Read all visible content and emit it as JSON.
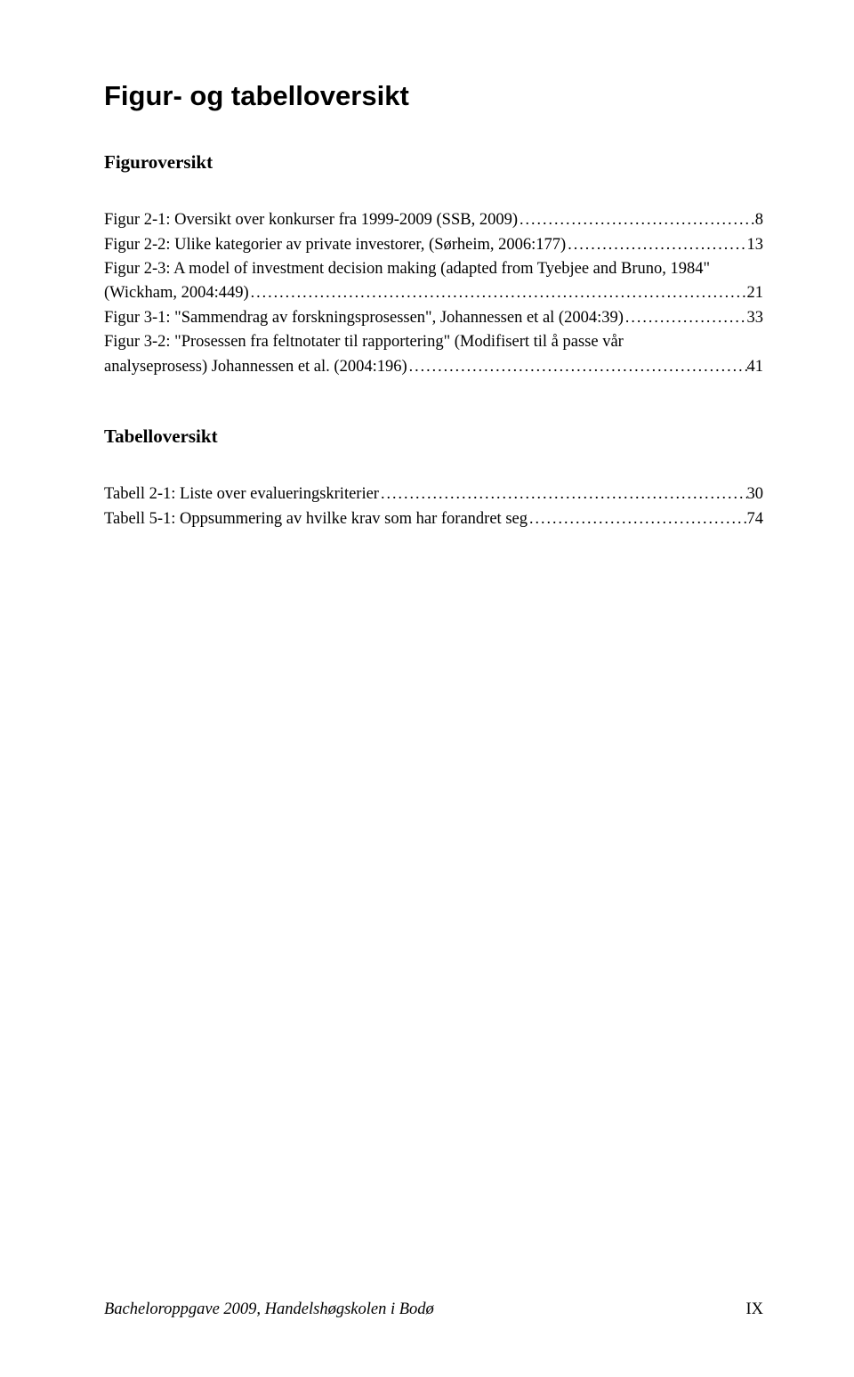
{
  "title": "Figur- og tabelloversikt",
  "sections": [
    {
      "heading": "Figuroversikt",
      "entries": [
        {
          "lines": [
            "Figur 2-1: Oversikt over konkurser fra 1999-2009 (SSB, 2009)"
          ],
          "page": "8"
        },
        {
          "lines": [
            "Figur 2-2: Ulike kategorier av private investorer, (Sørheim, 2006:177)"
          ],
          "page": "13"
        },
        {
          "lines": [
            "Figur 2-3: A model of investment decision making (adapted from Tyebjee and Bruno, 1984\"",
            "(Wickham, 2004:449)"
          ],
          "page": "21"
        },
        {
          "lines": [
            "Figur 3-1: \"Sammendrag av forskningsprosessen\", Johannessen et al (2004:39)"
          ],
          "page": "33"
        },
        {
          "lines": [
            "Figur 3-2: \"Prosessen fra feltnotater til rapportering\" (Modifisert til å passe vår",
            "analyseprosess) Johannessen et al. (2004:196)"
          ],
          "page": "41"
        }
      ]
    },
    {
      "heading": "Tabelloversikt",
      "entries": [
        {
          "lines": [
            "Tabell 2-1: Liste over evalueringskriterier"
          ],
          "page": "30"
        },
        {
          "lines": [
            "Tabell 5-1: Oppsummering av hvilke krav som har forandret seg"
          ],
          "page": "74"
        }
      ]
    }
  ],
  "footer": {
    "left": "Bacheloroppgave 2009, Handelshøgskolen i Bodø",
    "right": "IX"
  },
  "style": {
    "dots": "......................................................................................................................................................"
  }
}
